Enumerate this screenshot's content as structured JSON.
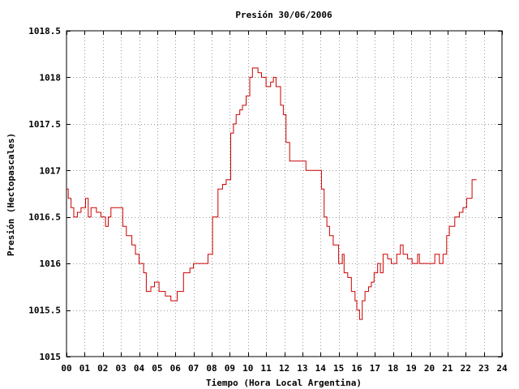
{
  "chart_data": {
    "type": "line",
    "title": "Presión 30/06/2006",
    "xlabel": "Tiempo (Hora Local Argentina)",
    "ylabel": "Presión (Hectopascales)",
    "xlim": [
      0,
      24
    ],
    "ylim": [
      1015,
      1018.5
    ],
    "x_ticks": [
      0,
      1,
      2,
      3,
      4,
      5,
      6,
      7,
      8,
      9,
      10,
      11,
      12,
      13,
      14,
      15,
      16,
      17,
      18,
      19,
      20,
      21,
      22,
      23,
      24
    ],
    "x_tick_labels": [
      "00",
      "01",
      "02",
      "03",
      "04",
      "05",
      "06",
      "07",
      "08",
      "09",
      "10",
      "11",
      "12",
      "13",
      "14",
      "15",
      "16",
      "17",
      "18",
      "19",
      "20",
      "21",
      "22",
      "23",
      "24"
    ],
    "y_ticks": [
      1015,
      1015.5,
      1016,
      1016.5,
      1017,
      1017.5,
      1018,
      1018.5
    ],
    "y_tick_labels": [
      "1015",
      "1015.5",
      "1016",
      "1016.5",
      "1017",
      "1017.5",
      "1018",
      "1018.5"
    ],
    "grid": true,
    "step": true,
    "line_color": "#cc0000",
    "series": [
      {
        "points": [
          [
            0.0,
            1016.8
          ],
          [
            0.1,
            1016.7
          ],
          [
            0.25,
            1016.6
          ],
          [
            0.4,
            1016.5
          ],
          [
            0.6,
            1016.55
          ],
          [
            0.8,
            1016.6
          ],
          [
            1.05,
            1016.7
          ],
          [
            1.2,
            1016.5
          ],
          [
            1.35,
            1016.6
          ],
          [
            1.65,
            1016.55
          ],
          [
            1.9,
            1016.5
          ],
          [
            2.15,
            1016.4
          ],
          [
            2.3,
            1016.5
          ],
          [
            2.45,
            1016.6
          ],
          [
            3.1,
            1016.4
          ],
          [
            3.3,
            1016.3
          ],
          [
            3.6,
            1016.2
          ],
          [
            3.8,
            1016.1
          ],
          [
            4.0,
            1016.0
          ],
          [
            4.25,
            1015.9
          ],
          [
            4.4,
            1015.7
          ],
          [
            4.65,
            1015.75
          ],
          [
            4.85,
            1015.8
          ],
          [
            5.1,
            1015.7
          ],
          [
            5.45,
            1015.65
          ],
          [
            5.75,
            1015.6
          ],
          [
            6.1,
            1015.7
          ],
          [
            6.45,
            1015.9
          ],
          [
            6.8,
            1015.95
          ],
          [
            7.0,
            1016.0
          ],
          [
            7.8,
            1016.1
          ],
          [
            8.05,
            1016.5
          ],
          [
            8.35,
            1016.8
          ],
          [
            8.6,
            1016.85
          ],
          [
            8.8,
            1016.9
          ],
          [
            9.05,
            1017.4
          ],
          [
            9.2,
            1017.5
          ],
          [
            9.35,
            1017.6
          ],
          [
            9.55,
            1017.65
          ],
          [
            9.7,
            1017.7
          ],
          [
            9.9,
            1017.8
          ],
          [
            10.1,
            1018.0
          ],
          [
            10.25,
            1018.1
          ],
          [
            10.55,
            1018.05
          ],
          [
            10.75,
            1018.0
          ],
          [
            11.0,
            1017.9
          ],
          [
            11.25,
            1017.95
          ],
          [
            11.4,
            1018.0
          ],
          [
            11.55,
            1017.9
          ],
          [
            11.8,
            1017.7
          ],
          [
            11.95,
            1017.6
          ],
          [
            12.1,
            1017.3
          ],
          [
            12.3,
            1017.1
          ],
          [
            13.2,
            1017.0
          ],
          [
            14.05,
            1016.8
          ],
          [
            14.2,
            1016.5
          ],
          [
            14.35,
            1016.4
          ],
          [
            14.5,
            1016.3
          ],
          [
            14.7,
            1016.2
          ],
          [
            15.0,
            1016.0
          ],
          [
            15.2,
            1016.1
          ],
          [
            15.3,
            1015.9
          ],
          [
            15.5,
            1015.85
          ],
          [
            15.7,
            1015.7
          ],
          [
            15.9,
            1015.6
          ],
          [
            16.0,
            1015.5
          ],
          [
            16.15,
            1015.4
          ],
          [
            16.3,
            1015.6
          ],
          [
            16.45,
            1015.7
          ],
          [
            16.65,
            1015.75
          ],
          [
            16.8,
            1015.8
          ],
          [
            16.95,
            1015.9
          ],
          [
            17.15,
            1016.0
          ],
          [
            17.3,
            1015.9
          ],
          [
            17.45,
            1016.1
          ],
          [
            17.7,
            1016.05
          ],
          [
            17.9,
            1016.0
          ],
          [
            18.2,
            1016.1
          ],
          [
            18.4,
            1016.2
          ],
          [
            18.55,
            1016.1
          ],
          [
            18.8,
            1016.05
          ],
          [
            19.05,
            1016.0
          ],
          [
            19.35,
            1016.1
          ],
          [
            19.45,
            1016.0
          ],
          [
            20.05,
            1016.0
          ],
          [
            20.3,
            1016.1
          ],
          [
            20.55,
            1016.0
          ],
          [
            20.75,
            1016.1
          ],
          [
            20.95,
            1016.3
          ],
          [
            21.1,
            1016.4
          ],
          [
            21.4,
            1016.5
          ],
          [
            21.65,
            1016.55
          ],
          [
            21.85,
            1016.6
          ],
          [
            22.05,
            1016.7
          ],
          [
            22.35,
            1016.9
          ],
          [
            22.6,
            1016.9
          ]
        ]
      }
    ]
  }
}
